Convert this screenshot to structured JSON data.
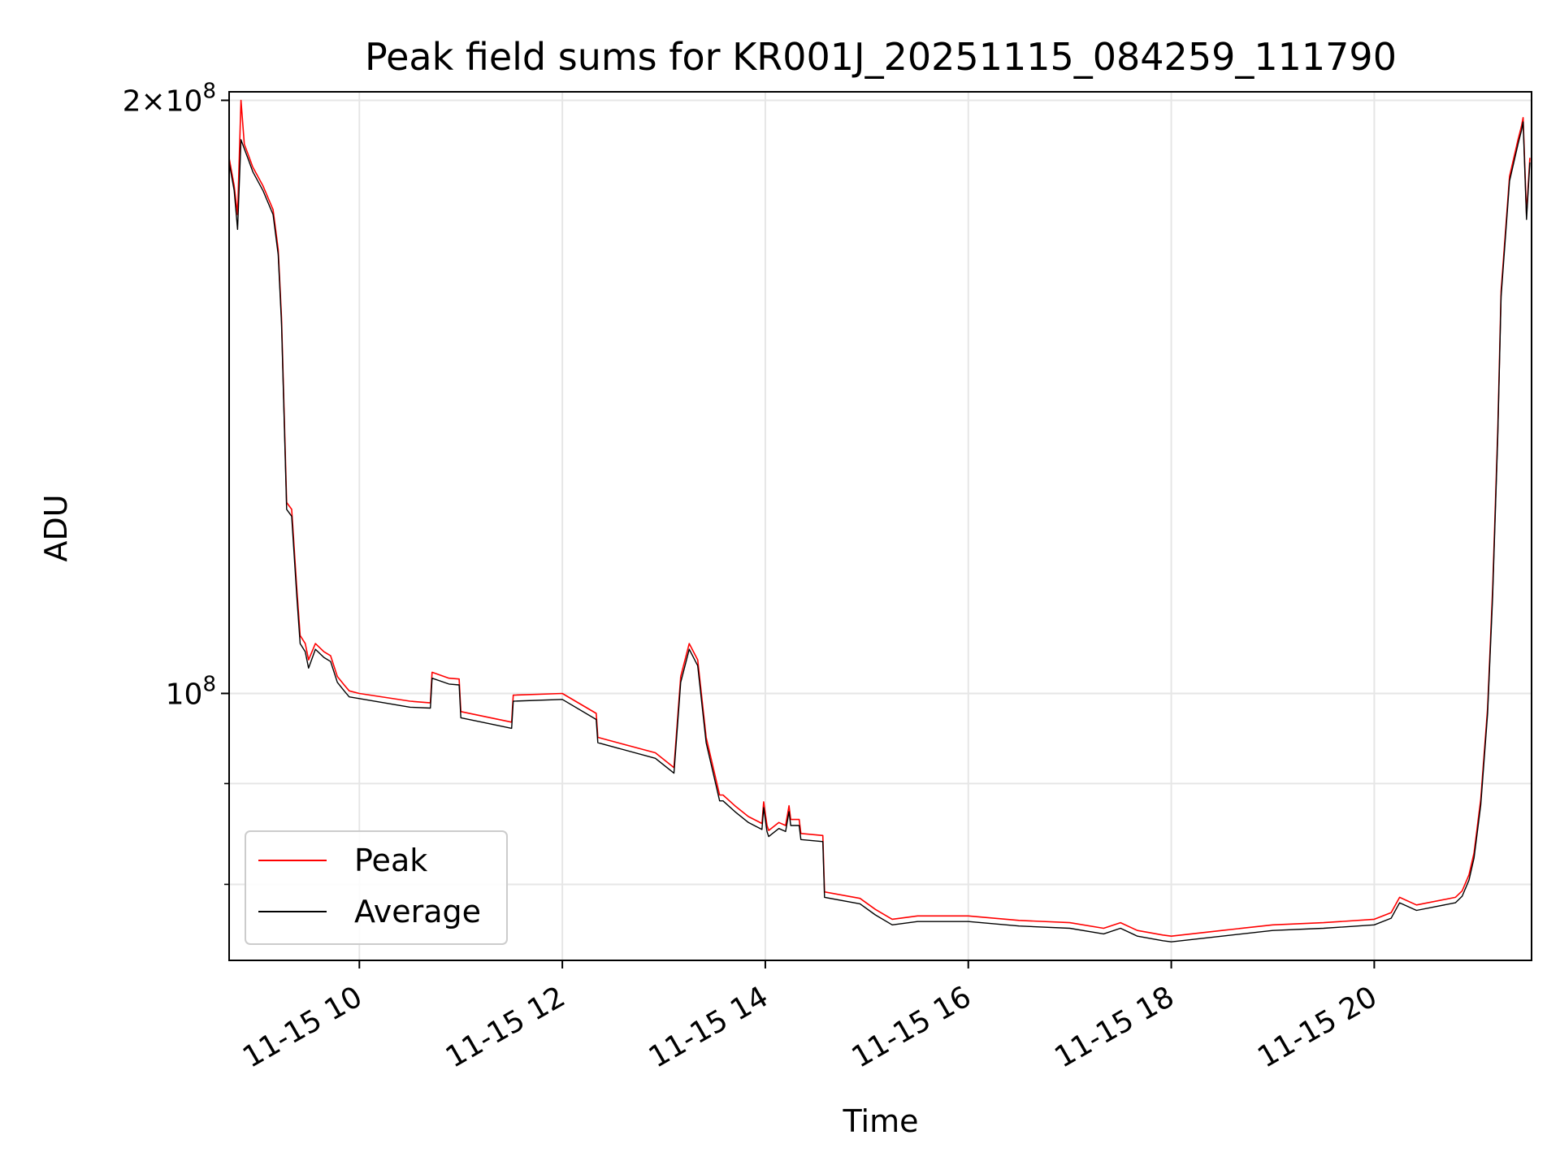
{
  "chart_data": {
    "type": "line",
    "title": "Peak field sums for KR001J_20251115_084259_111790",
    "xlabel": "Time",
    "ylabel": "ADU",
    "x_axis": "datetime (hours, 2025-11-15)",
    "xlim": [
      "2025-11-15 08:43",
      "2025-11-15 21:33"
    ],
    "x_ticks": [
      "11-15 10",
      "11-15 12",
      "11-15 14",
      "11-15 16",
      "11-15 18",
      "11-15 20"
    ],
    "y_scale": "log",
    "ylim": [
      73200000,
      202000000
    ],
    "y_ticks": [
      "2×10^8",
      "10^8"
    ],
    "grid": true,
    "legend": "lower-left",
    "series": [
      {
        "name": "Peak",
        "color": "#ff0000",
        "x": [
          "08:43",
          "08:46",
          "08:48",
          "08:50",
          "08:52",
          "08:54",
          "08:57",
          "09:03",
          "09:09",
          "09:12",
          "09:14",
          "09:17",
          "09:20",
          "09:23",
          "09:25",
          "09:28",
          "09:30",
          "09:34",
          "09:39",
          "09:43",
          "09:47",
          "09:51",
          "09:54",
          "10:00",
          "10:30",
          "10:42",
          "10:43",
          "10:53",
          "10:59",
          "11:00",
          "11:30",
          "11:31",
          "12:00",
          "12:20",
          "12:21",
          "12:55",
          "13:06",
          "13:10",
          "13:15",
          "13:20",
          "13:25",
          "13:33",
          "13:35",
          "13:42",
          "13:50",
          "13:58",
          "13:59",
          "14:01",
          "14:02",
          "14:08",
          "14:12",
          "14:14",
          "14:15",
          "14:20",
          "14:21",
          "14:34",
          "14:35",
          "14:56",
          "15:05",
          "15:15",
          "15:30",
          "16:00",
          "16:30",
          "17:00",
          "17:20",
          "17:30",
          "17:40",
          "17:55",
          "18:00",
          "18:30",
          "19:00",
          "19:30",
          "20:00",
          "20:10",
          "20:15",
          "20:25",
          "20:48",
          "20:52",
          "20:56",
          "20:59",
          "21:03",
          "21:07",
          "21:10",
          "21:13",
          "21:15",
          "21:20",
          "21:25",
          "21:27",
          "21:28",
          "21:30",
          "21:32"
        ],
        "values": [
          187000000,
          181000000,
          175000000,
          200000000,
          190000000,
          188000000,
          185000000,
          181000000,
          176000000,
          168000000,
          155000000,
          125000000,
          124000000,
          113000000,
          107000000,
          106000000,
          104000000,
          106000000,
          105000000,
          104500000,
          102000000,
          101000000,
          100300000,
          100000000,
          99100000,
          98900000,
          102500000,
          101800000,
          101700000,
          97900000,
          96700000,
          99800000,
          100000000,
          97700000,
          95000000,
          93300000,
          91700000,
          102000000,
          106000000,
          104000000,
          95000000,
          88800000,
          88800000,
          87700000,
          86600000,
          85900000,
          88100000,
          85700000,
          85200000,
          86000000,
          85700000,
          87700000,
          86300000,
          86300000,
          84900000,
          84700000,
          79300000,
          78700000,
          77700000,
          76800000,
          77100000,
          77100000,
          76700000,
          76500000,
          76000000,
          76500000,
          75800000,
          75400000,
          75300000,
          75800000,
          76300000,
          76500000,
          76800000,
          77400000,
          78800000,
          78100000,
          78800000,
          79400000,
          80900000,
          83000000,
          88400000,
          98300000,
          113000000,
          136000000,
          160000000,
          183000000,
          191000000,
          194000000,
          196000000,
          175000000,
          187000000
        ]
      },
      {
        "name": "Average",
        "color": "#000000",
        "x": [
          "08:43",
          "08:46",
          "08:48",
          "08:50",
          "08:52",
          "08:54",
          "08:57",
          "09:03",
          "09:09",
          "09:12",
          "09:14",
          "09:17",
          "09:20",
          "09:23",
          "09:25",
          "09:28",
          "09:30",
          "09:34",
          "09:39",
          "09:43",
          "09:47",
          "09:51",
          "09:54",
          "10:00",
          "10:30",
          "10:42",
          "10:43",
          "10:53",
          "10:59",
          "11:00",
          "11:30",
          "11:31",
          "12:00",
          "12:20",
          "12:21",
          "12:55",
          "13:06",
          "13:10",
          "13:15",
          "13:20",
          "13:25",
          "13:33",
          "13:35",
          "13:42",
          "13:50",
          "13:58",
          "13:59",
          "14:01",
          "14:02",
          "14:08",
          "14:12",
          "14:14",
          "14:15",
          "14:20",
          "14:21",
          "14:34",
          "14:35",
          "14:56",
          "15:05",
          "15:15",
          "15:30",
          "16:00",
          "16:30",
          "17:00",
          "17:20",
          "17:30",
          "17:40",
          "17:55",
          "18:00",
          "18:30",
          "19:00",
          "19:30",
          "20:00",
          "20:10",
          "20:15",
          "20:25",
          "20:48",
          "20:52",
          "20:56",
          "20:59",
          "21:03",
          "21:07",
          "21:10",
          "21:13",
          "21:15",
          "21:20",
          "21:25",
          "21:27",
          "21:28",
          "21:30",
          "21:32"
        ],
        "values": [
          186000000,
          180000000,
          172000000,
          191000000,
          189000000,
          187000000,
          184000000,
          180000000,
          175000000,
          167000000,
          154000000,
          124000000,
          123000000,
          112000000,
          106000000,
          105000000,
          103000000,
          105300000,
          104300000,
          103800000,
          101300000,
          100300000,
          99600000,
          99400000,
          98400000,
          98300000,
          101800000,
          101100000,
          101000000,
          97200000,
          96000000,
          99100000,
          99300000,
          97000000,
          94400000,
          92700000,
          91100000,
          101300000,
          105300000,
          103300000,
          94400000,
          88200000,
          88200000,
          87100000,
          86000000,
          85300000,
          87500000,
          85100000,
          84600000,
          85400000,
          85100000,
          87100000,
          85700000,
          85700000,
          84300000,
          84100000,
          78800000,
          78200000,
          77200000,
          76300000,
          76600000,
          76600000,
          76200000,
          76000000,
          75500000,
          76000000,
          75300000,
          74900000,
          74800000,
          75300000,
          75800000,
          76000000,
          76300000,
          76900000,
          78300000,
          77600000,
          78300000,
          78900000,
          80400000,
          82500000,
          87800000,
          97700000,
          112000000,
          135000000,
          159000000,
          182000000,
          190000000,
          193000000,
          195000000,
          174000000,
          186000000
        ]
      }
    ]
  }
}
